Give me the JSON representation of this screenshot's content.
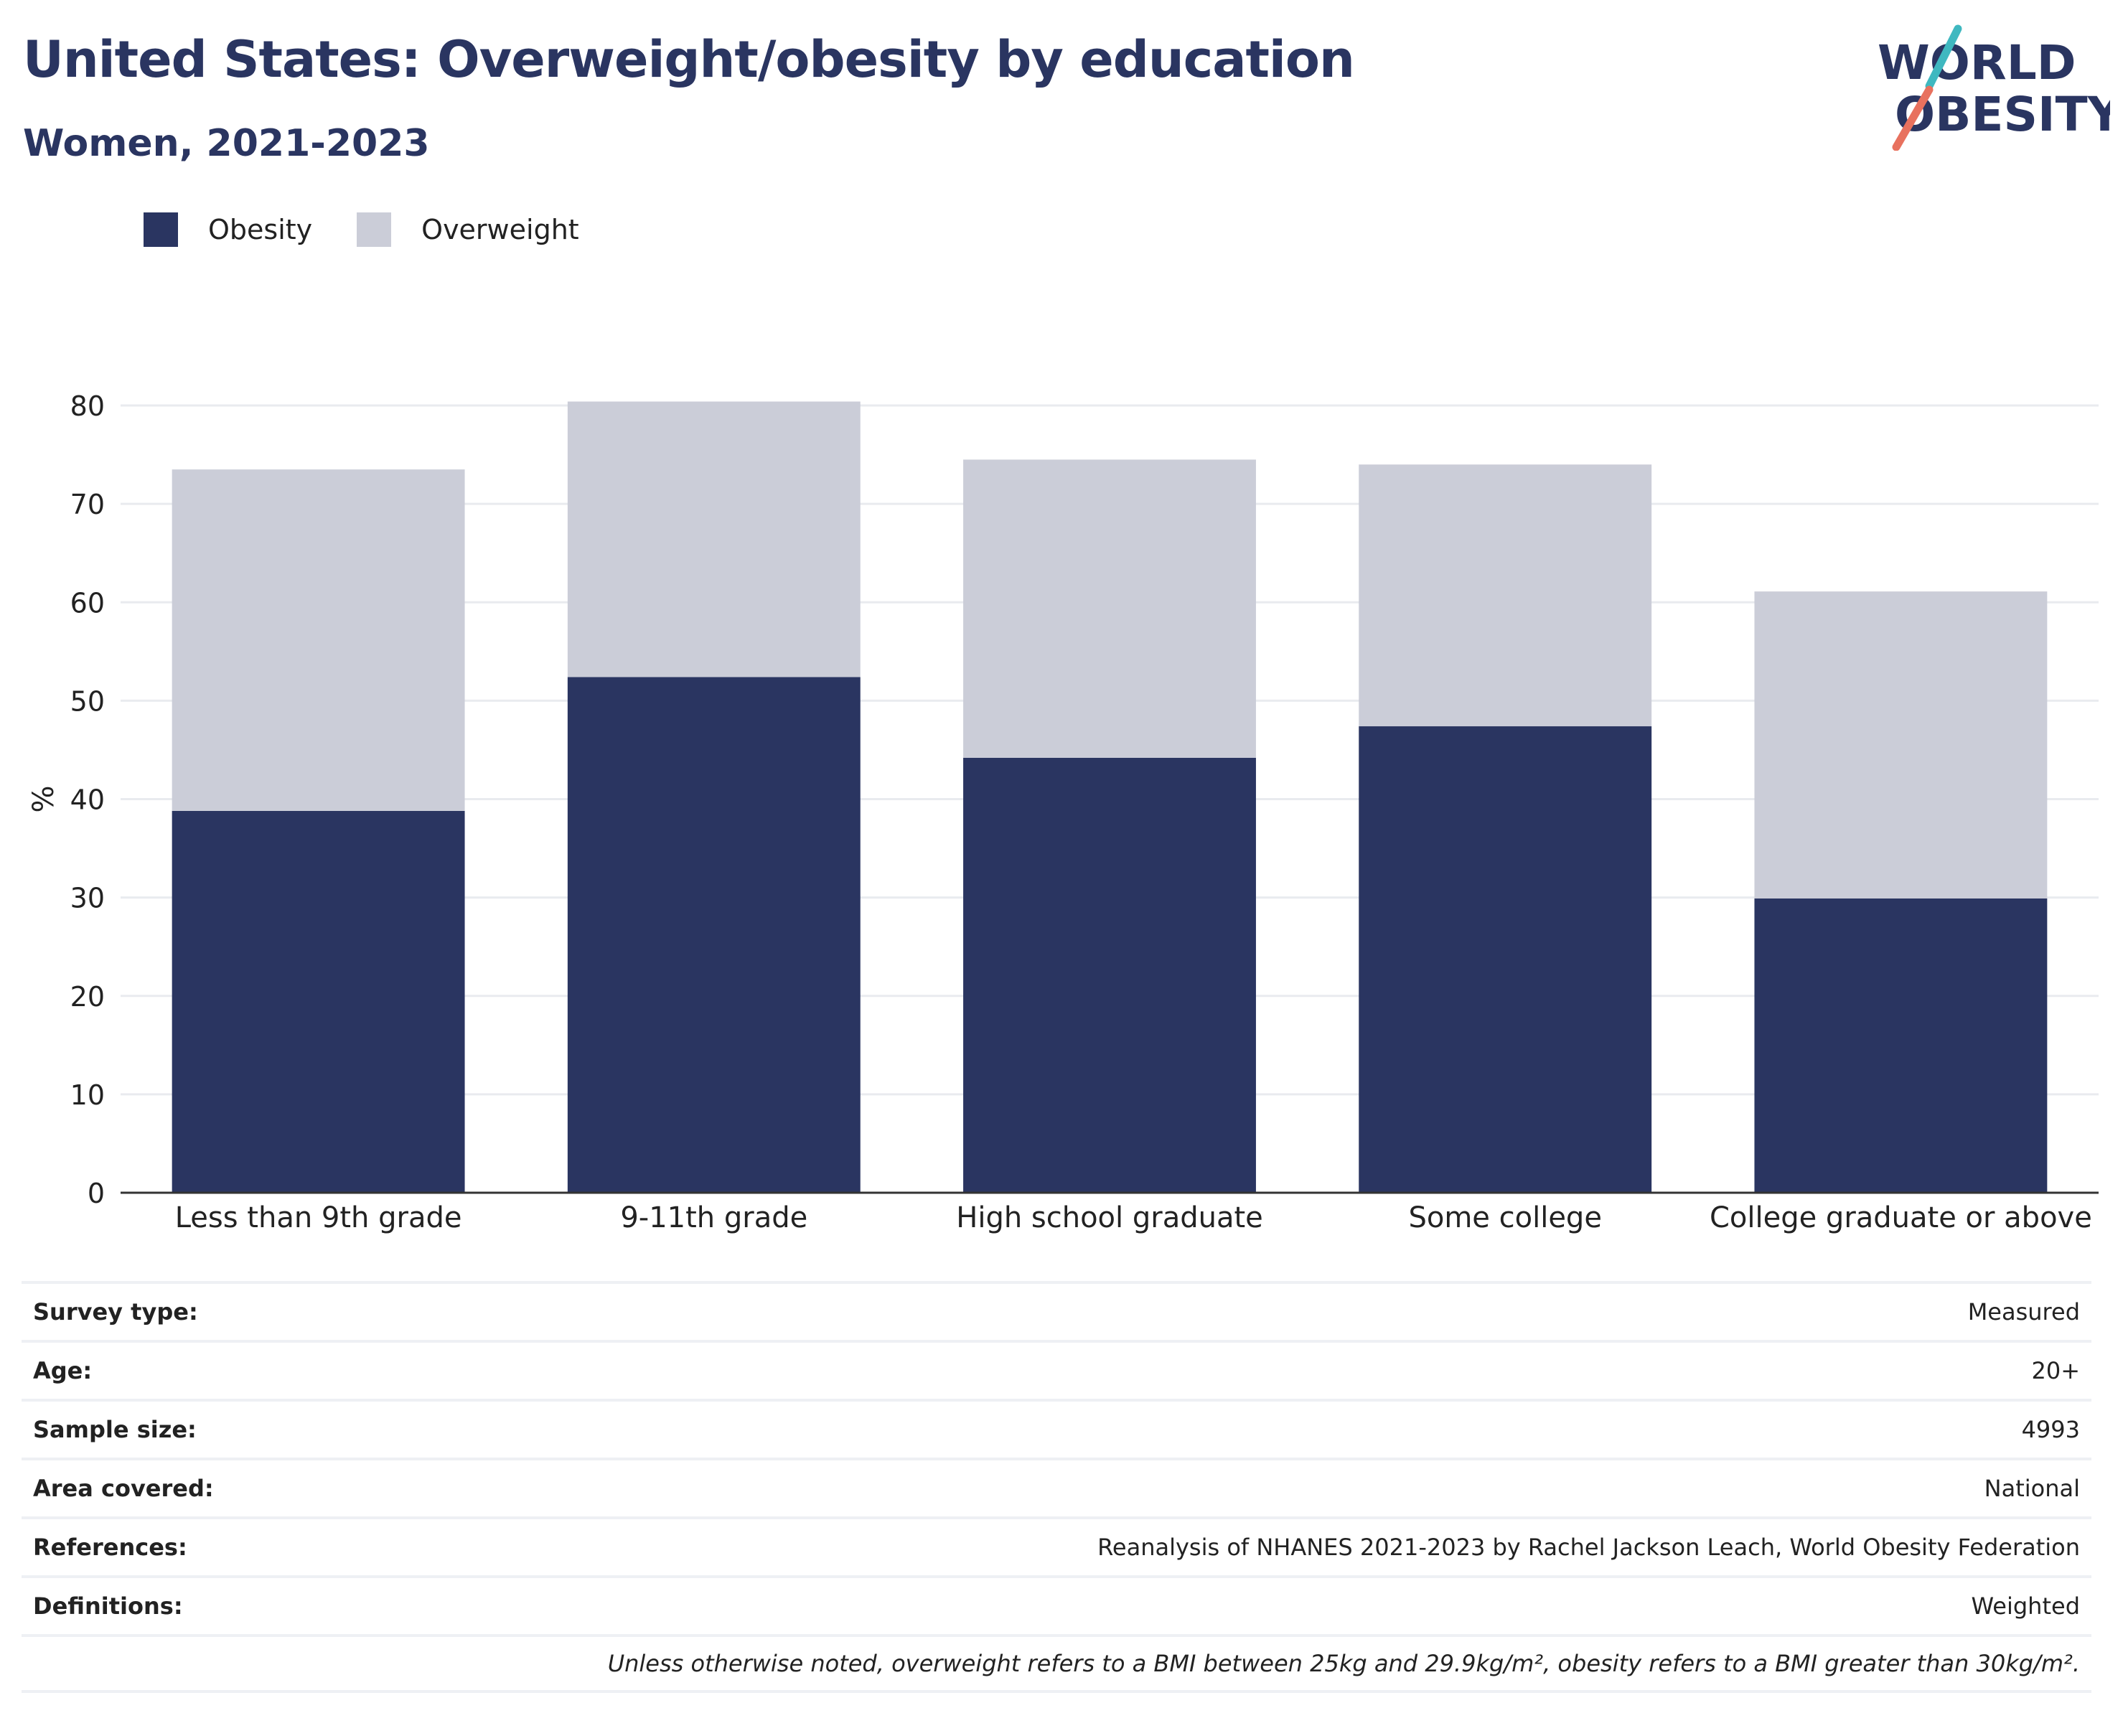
{
  "header": {
    "title": "United States: Overweight/obesity by education",
    "subtitle": "Women, 2021-2023"
  },
  "logo": {
    "line1": "WORLD",
    "line2": "OBESITY"
  },
  "colors": {
    "obesity": "#2a3561",
    "overweight": "#cbcdd8",
    "grid": "#e9ebef",
    "axis": "#333333",
    "accent_teal": "#3fb8c0",
    "accent_coral": "#e8715e"
  },
  "legend": [
    {
      "label": "Obesity",
      "color": "#2a3561"
    },
    {
      "label": "Overweight",
      "color": "#cbcdd8"
    }
  ],
  "chart_data": {
    "type": "bar",
    "stacked": true,
    "title": "United States: Overweight/obesity by education",
    "subtitle": "Women, 2021-2023",
    "xlabel": "",
    "ylabel": "%",
    "ylim": [
      0,
      80
    ],
    "yticks": [
      0,
      10,
      20,
      30,
      40,
      50,
      60,
      70,
      80
    ],
    "grid": true,
    "legend_position": "top-left",
    "categories": [
      "Less than 9th grade",
      "9-11th grade",
      "High school graduate",
      "Some college",
      "College graduate or above"
    ],
    "series": [
      {
        "name": "Obesity",
        "values": [
          38.8,
          52.4,
          44.2,
          47.4,
          29.9
        ]
      },
      {
        "name": "Overweight",
        "values": [
          34.7,
          28.0,
          30.3,
          26.6,
          31.2
        ]
      }
    ]
  },
  "meta": [
    {
      "label": "Survey type:",
      "value": "Measured"
    },
    {
      "label": "Age:",
      "value": "20+"
    },
    {
      "label": "Sample size:",
      "value": "4993"
    },
    {
      "label": "Area covered:",
      "value": "National"
    },
    {
      "label": "References:",
      "value": "Reanalysis of NHANES 2021-2023 by Rachel Jackson Leach, World Obesity Federation"
    },
    {
      "label": "Definitions:",
      "value": "Weighted"
    }
  ],
  "footnote": "Unless otherwise noted, overweight refers to a BMI between 25kg and 29.9kg/m², obesity refers to a BMI greater than 30kg/m²."
}
